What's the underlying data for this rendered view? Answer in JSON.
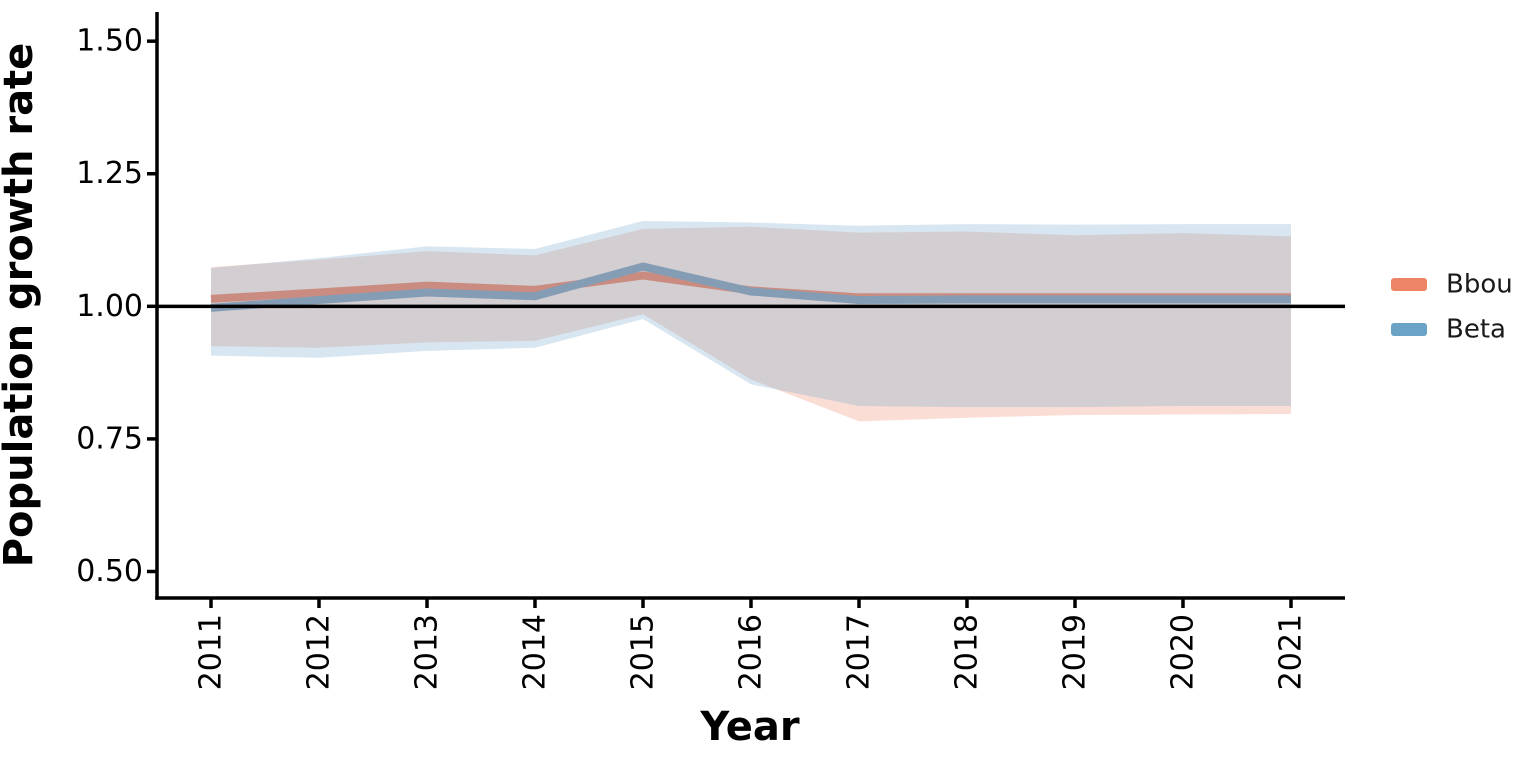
{
  "figure": {
    "background": "#ffffff",
    "title": ""
  },
  "axes": {
    "xlabel": "Year",
    "ylabel": "Population growth rate",
    "x_tick_labels": [
      "2011",
      "2012",
      "2013",
      "2014",
      "2015",
      "2016",
      "2017",
      "2018",
      "2019",
      "2020",
      "2021"
    ],
    "y_tick_labels": [
      "0.50",
      "0.75",
      "1.00",
      "1.25",
      "1.50"
    ]
  },
  "legend": {
    "items": [
      {
        "label": "Bbou",
        "color": "#ED8466"
      },
      {
        "label": "Beta",
        "color": "#6BA3C7"
      }
    ]
  },
  "chart_data": {
    "type": "line",
    "title": "",
    "xlabel": "Year",
    "ylabel": "Population growth rate",
    "x": [
      2011,
      2012,
      2013,
      2014,
      2015,
      2016,
      2017,
      2018,
      2019,
      2020,
      2021
    ],
    "xlim": [
      2010.5,
      2021.5
    ],
    "ylim": [
      0.45,
      1.555
    ],
    "y_ticks": [
      0.5,
      0.75,
      1.0,
      1.25,
      1.5
    ],
    "reference_line_y": 1.0,
    "grid": false,
    "legend_position": "right",
    "ribbon_alpha": 0.27,
    "series": [
      {
        "name": "Bbou",
        "color": "#ED8466",
        "values": [
          1.014,
          1.026,
          1.039,
          1.031,
          1.058,
          1.03,
          1.017,
          1.017,
          1.017,
          1.017,
          1.017
        ],
        "ci_lower": [
          0.925,
          0.922,
          0.932,
          0.935,
          0.985,
          0.862,
          0.783,
          0.79,
          0.795,
          0.796,
          0.797
        ],
        "ci_upper": [
          1.074,
          1.088,
          1.104,
          1.096,
          1.146,
          1.15,
          1.139,
          1.141,
          1.134,
          1.138,
          1.132
        ]
      },
      {
        "name": "Beta",
        "color": "#6BA3C7",
        "values": [
          0.997,
          1.012,
          1.026,
          1.019,
          1.075,
          1.028,
          1.012,
          1.013,
          1.013,
          1.013,
          1.013
        ],
        "ci_lower": [
          0.907,
          0.903,
          0.916,
          0.922,
          0.976,
          0.853,
          0.812,
          0.81,
          0.81,
          0.812,
          0.812
        ],
        "ci_upper": [
          1.072,
          1.091,
          1.113,
          1.108,
          1.161,
          1.158,
          1.152,
          1.155,
          1.154,
          1.155,
          1.155
        ]
      }
    ]
  }
}
